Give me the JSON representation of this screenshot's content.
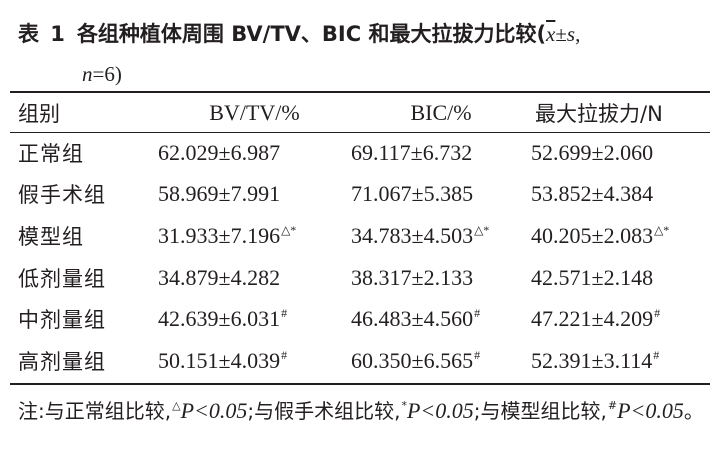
{
  "caption": {
    "label": "表 1",
    "title": "各组种植体周围 BV/TV、BIC 和最大拉拔力比较(",
    "xbar": "x",
    "pm": "±",
    "s": "s",
    "comma": ",",
    "n": "n",
    "n_value": "=6)"
  },
  "table": {
    "headers": [
      "组别",
      "BV/TV/%",
      "BIC/%",
      "最大拉拔力/N"
    ],
    "rows": [
      {
        "group": "正常组",
        "bvtv": "62.029±6.987",
        "bvtv_mark": "",
        "bic": "69.117±6.732",
        "bic_mark": "",
        "force": "52.699±2.060",
        "force_mark": ""
      },
      {
        "group": "假手术组",
        "bvtv": "58.969±7.991",
        "bvtv_mark": "",
        "bic": "71.067±5.385",
        "bic_mark": "",
        "force": "53.852±4.384",
        "force_mark": ""
      },
      {
        "group": "模型组",
        "bvtv": "31.933±7.196",
        "bvtv_mark": "△*",
        "bic": "34.783±4.503",
        "bic_mark": "△*",
        "force": "40.205±2.083",
        "force_mark": "△*"
      },
      {
        "group": "低剂量组",
        "bvtv": "34.879±4.282",
        "bvtv_mark": "",
        "bic": "38.317±2.133",
        "bic_mark": "",
        "force": "42.571±2.148",
        "force_mark": ""
      },
      {
        "group": "中剂量组",
        "bvtv": "42.639±6.031",
        "bvtv_mark": "#",
        "bic": "46.483±4.560",
        "bic_mark": "#",
        "force": "47.221±4.209",
        "force_mark": "#"
      },
      {
        "group": "高剂量组",
        "bvtv": "50.151±4.039",
        "bvtv_mark": "#",
        "bic": "60.350±6.565",
        "bic_mark": "#",
        "force": "52.391±3.114",
        "force_mark": "#"
      }
    ]
  },
  "note": {
    "prefix": "注:与正常组比较,",
    "mark1": "△",
    "p1": "P<0.05",
    "mid1": ";与假手术组比较,",
    "mark2": "*",
    "p2": "P<0.05",
    "mid2": ";与模型组比较,",
    "mark3": "#",
    "p3": "P<0.05",
    "end": "。"
  }
}
